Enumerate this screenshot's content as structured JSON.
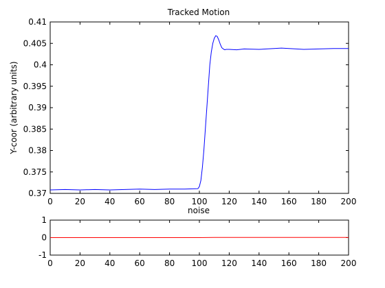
{
  "chart_data": [
    {
      "type": "line",
      "title": "Tracked Motion",
      "xlabel": "",
      "ylabel": "Y-coor (arbitrary units)",
      "xlim": [
        0,
        200
      ],
      "ylim": [
        0.37,
        0.41
      ],
      "x_ticks": [
        "0",
        "20",
        "40",
        "60",
        "80",
        "100",
        "120",
        "140",
        "160",
        "180",
        "200"
      ],
      "y_ticks": [
        "0.37",
        "0.375",
        "0.38",
        "0.385",
        "0.39",
        "0.395",
        "0.4",
        "0.405",
        "0.41"
      ],
      "grid": false,
      "series": [
        {
          "color": "#0000ff",
          "x": [
            0,
            10,
            20,
            30,
            40,
            50,
            60,
            70,
            80,
            90,
            99,
            100,
            101,
            102,
            103,
            104,
            105,
            106,
            107,
            108,
            109,
            110,
            111,
            112,
            113,
            114,
            115,
            116,
            117,
            118,
            120,
            125,
            130,
            140,
            150,
            155,
            160,
            170,
            180,
            190,
            200
          ],
          "y": [
            0.3708,
            0.3709,
            0.3708,
            0.3709,
            0.3708,
            0.3709,
            0.371,
            0.3709,
            0.371,
            0.371,
            0.3711,
            0.3716,
            0.373,
            0.376,
            0.38,
            0.385,
            0.39,
            0.395,
            0.4,
            0.403,
            0.405,
            0.4062,
            0.4068,
            0.4066,
            0.4058,
            0.4048,
            0.404,
            0.4037,
            0.4035,
            0.4036,
            0.4036,
            0.4035,
            0.4037,
            0.4036,
            0.4038,
            0.4039,
            0.4038,
            0.4036,
            0.4037,
            0.4038,
            0.4038
          ]
        }
      ]
    },
    {
      "type": "line",
      "title": "noise",
      "xlabel": "",
      "ylabel": "",
      "xlim": [
        0,
        200
      ],
      "ylim": [
        -1,
        1
      ],
      "x_ticks": [
        "0",
        "20",
        "40",
        "60",
        "80",
        "100",
        "120",
        "140",
        "160",
        "180",
        "200"
      ],
      "y_ticks": [
        "-1",
        "0",
        "1"
      ],
      "grid": false,
      "series": [
        {
          "color": "#ff0000",
          "x": [
            0,
            50,
            100,
            110,
            150,
            199,
            200
          ],
          "y": [
            0.0,
            0.0,
            0.0,
            0.01,
            0.01,
            0.01,
            0.0
          ]
        }
      ]
    }
  ]
}
